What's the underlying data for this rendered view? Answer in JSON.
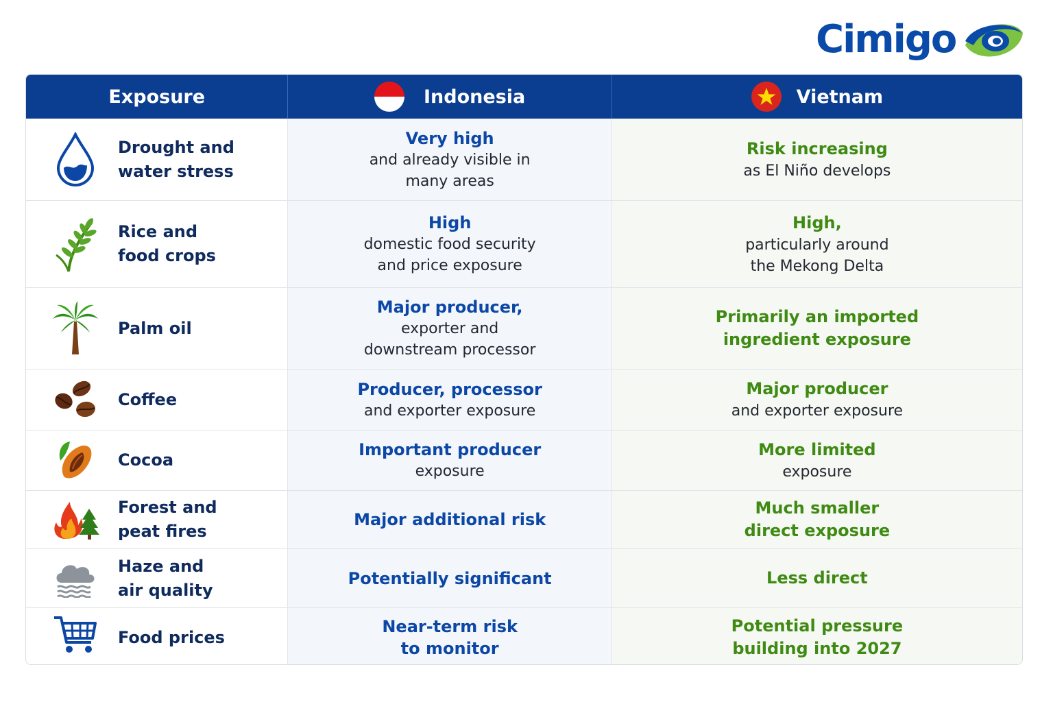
{
  "brand": {
    "name": "Cimigo",
    "colors": {
      "blue": "#0a4aa8",
      "green": "#7dc242",
      "header": "#0b3d91",
      "indonesia_text": "#0c47a6",
      "vietnam_text": "#3f8a13"
    }
  },
  "header": {
    "exposure": "Exposure",
    "indonesia": "Indonesia",
    "vietnam": "Vietnam"
  },
  "rows": [
    {
      "icon": "water-drop-icon",
      "exposure": "Drought and\nwater stress",
      "indonesia": {
        "main": "Very high",
        "sub": "and already visible in\nmany areas"
      },
      "vietnam": {
        "main": "Risk increasing",
        "sub": "as El Niño develops"
      }
    },
    {
      "icon": "rice-plant-icon",
      "exposure": "Rice and\nfood crops",
      "indonesia": {
        "main": "High",
        "sub": "domestic food security\nand price exposure"
      },
      "vietnam": {
        "main": "High,",
        "sub": "particularly around\nthe Mekong Delta"
      }
    },
    {
      "icon": "palm-tree-icon",
      "exposure": "Palm oil",
      "indonesia": {
        "main": "Major producer,",
        "sub": "exporter and\ndownstream processor"
      },
      "vietnam": {
        "main": "Primarily an imported\ningredient exposure",
        "sub": ""
      }
    },
    {
      "icon": "coffee-beans-icon",
      "exposure": "Coffee",
      "indonesia": {
        "main": "Producer, processor",
        "sub": "and exporter exposure"
      },
      "vietnam": {
        "main": "Major producer",
        "sub": "and exporter exposure"
      }
    },
    {
      "icon": "cocoa-pod-icon",
      "exposure": "Cocoa",
      "indonesia": {
        "main": "Important producer",
        "sub": "exposure"
      },
      "vietnam": {
        "main": "More limited",
        "sub": "exposure"
      }
    },
    {
      "icon": "forest-fire-icon",
      "exposure": "Forest and\npeat fires",
      "indonesia": {
        "main": "Major additional risk",
        "sub": ""
      },
      "vietnam": {
        "main": "Much smaller\ndirect exposure",
        "sub": ""
      }
    },
    {
      "icon": "haze-cloud-icon",
      "exposure": "Haze and\nair quality",
      "indonesia": {
        "main": "Potentially significant",
        "sub": ""
      },
      "vietnam": {
        "main": "Less direct",
        "sub": ""
      }
    },
    {
      "icon": "shopping-cart-icon",
      "exposure": "Food prices",
      "indonesia": {
        "main": "Near-term risk\nto monitor",
        "sub": ""
      },
      "vietnam": {
        "main": "Potential pressure\nbuilding into 2027",
        "sub": ""
      }
    }
  ]
}
